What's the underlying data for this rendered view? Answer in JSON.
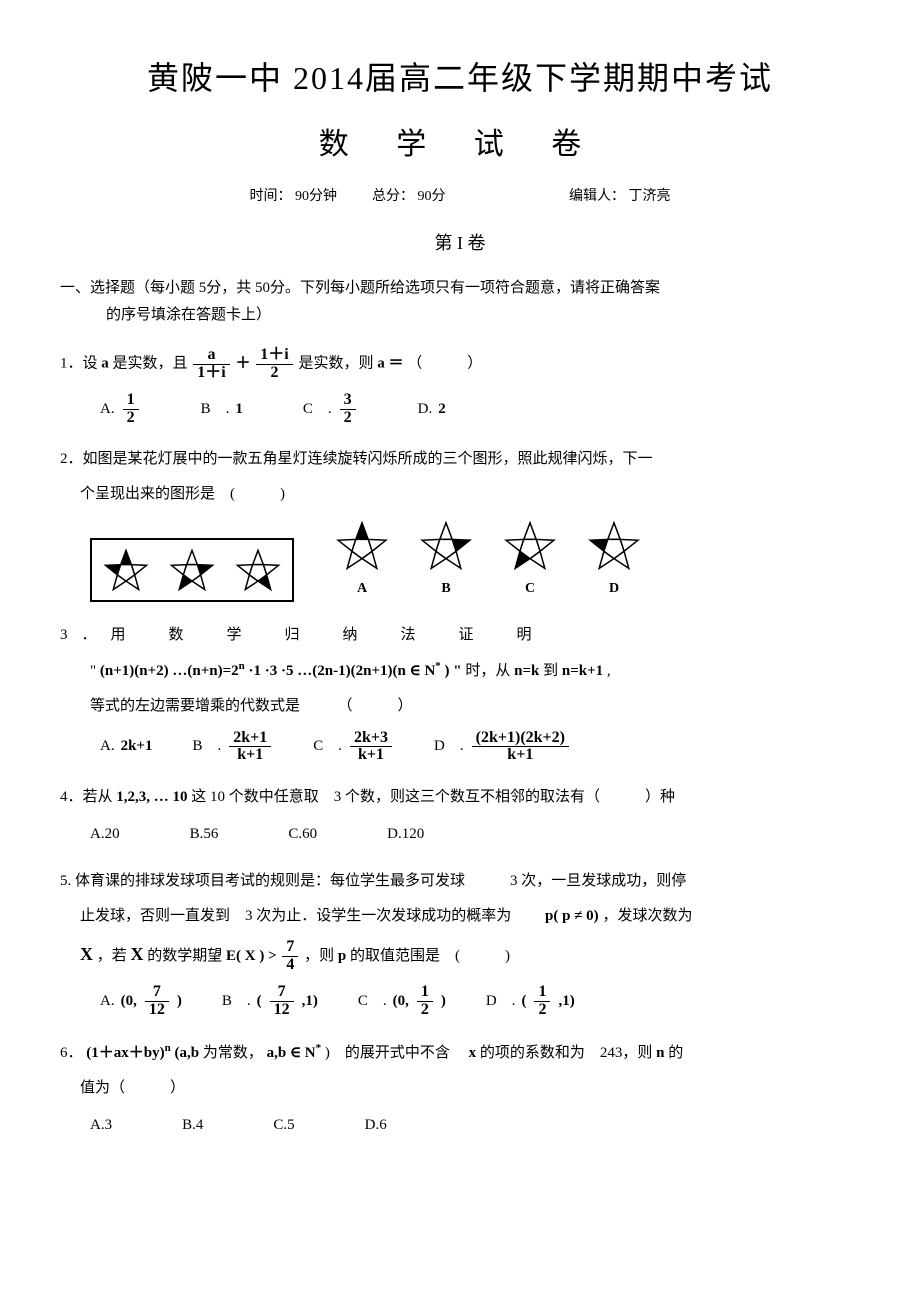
{
  "header": {
    "title_main": "黄陂一中 2014届高二年级下学期期中考试",
    "title_sub": "数 学 试 卷",
    "time_label": "时间：",
    "time_value": "90分钟",
    "total_label": "总分：",
    "total_value": "90分",
    "editor_label": "编辑人：",
    "editor_name": "丁济亮",
    "section": "第 I 卷"
  },
  "instructions": {
    "line1": "一、选择题（每小题  5分，共 50分。下列每小题所给选项只有一项符合题意，请将正确答案",
    "line2": "的序号填涂在答题卡上）"
  },
  "q1": {
    "prefix": "1．设 ",
    "a": "a",
    "t1": " 是实数，且 ",
    "frac1_num": "a",
    "frac1_den": "1＋i",
    "plus": " ＋",
    "frac2_num": "1＋i",
    "frac2_den": "2",
    "t2": " 是实数，则 ",
    "eq": "a ＝",
    "paren": "（　　　）",
    "optA_label": "A.",
    "optA_num": "1",
    "optA_den": "2",
    "optB_label": "B　.",
    "optB_val": "1",
    "optC_label": "C　.",
    "optC_num": "3",
    "optC_den": "2",
    "optD_label": "D.",
    "optD_val": "2"
  },
  "q2": {
    "line1": "2．如图是某花灯展中的一款五角星灯连续旋转闪烁所成的三个图形，照此规律闪烁，下一",
    "line2": "个呈现出来的图形是　(　　　)",
    "labels": {
      "A": "A",
      "B": "B",
      "C": "C",
      "D": "D"
    },
    "star": {
      "size": 56,
      "size_small": 48,
      "stroke": "#000000",
      "stroke_width": 1.5,
      "fill_dark": "#000000",
      "fill_light": "#ffffff"
    },
    "pattern_box": [
      [
        1,
        0,
        0,
        0,
        1
      ],
      [
        0,
        1,
        0,
        1,
        0
      ],
      [
        0,
        0,
        1,
        0,
        0
      ]
    ],
    "options": {
      "A": [
        1,
        0,
        0,
        0,
        0
      ],
      "B": [
        0,
        1,
        0,
        0,
        0
      ],
      "C": [
        0,
        0,
        0,
        1,
        0
      ],
      "D": [
        0,
        0,
        0,
        0,
        1
      ]
    }
  },
  "q3": {
    "line1": "3．用　数　学　归　纳　法　证　明",
    "expr_pre": "\" ",
    "expr": "(n+1)(n+2) …(n+n)=2",
    "expr_sup": "n",
    "expr_mid": " ·1 ·3 ·5 …(2n-1)(2n+1)(n",
    "in": "∈",
    "set": "N",
    "set_sup": "*",
    "expr_post": " ) \"",
    "t_after": " 时，从 ",
    "nk": "n=k",
    "to": " 到 ",
    "nk1": "n=k+1",
    "comma": " ,",
    "line3": "等式的左边需要增乘的代数式是　　　（　　　）",
    "optA_label": "A.",
    "optA_val": "2k+1",
    "optB_label": "B　.",
    "optB_num": "2k+1",
    "optB_den": "k+1",
    "optC_label": "C　.",
    "optC_num": "2k+3",
    "optC_den": "k+1",
    "optD_label": "D　.",
    "optD_num": "(2k+1)(2k+2)",
    "optD_den": "k+1"
  },
  "q4": {
    "line1_a": "4．若从 ",
    "nums": "1,2,3, … 10",
    "line1_b": " 这 10 个数中任意取　3 个数，则这三个数互不相邻的取法有（　　　）种",
    "optA": "A.20",
    "optB": "B.56",
    "optC": "C.60",
    "optD": "D.120"
  },
  "q5": {
    "line1": "5. 体育课的排球发球项目考试的规则是：每位学生最多可发球　　　3 次，一旦发球成功，则停",
    "line2_a": "止发球，否则一直发到　3 次为止．设学生一次发球成功的概率为　　",
    "p": "p( p ≠ 0)",
    "line2_b": " ，发球次数为",
    "line3_a": "X",
    "line3_b": " ，若 ",
    "line3_c": "X",
    "line3_d": " 的数学期望 ",
    "EX": "E( X ) >",
    "frac_num": "7",
    "frac_den": "4",
    "line3_e": "，则 ",
    "line3_p": "p",
    "line3_f": " 的取值范围是　(　　　)",
    "optA_label": "A.",
    "optA_open": "(0, ",
    "optA_num": "7",
    "optA_den": "12",
    "optA_close": ")",
    "optB_label": "B　.",
    "optB_open": "(",
    "optB_num": "7",
    "optB_den": "12",
    "optB_close": ",1)",
    "optC_label": "C　.",
    "optC_open": "(0, ",
    "optC_num": "1",
    "optC_den": "2",
    "optC_close": ")",
    "optD_label": "D　.",
    "optD_open": "(",
    "optD_num": "1",
    "optD_den": "2",
    "optD_close": ",1)"
  },
  "q6": {
    "line1_a": "6．",
    "expr": "(1＋ax＋by)",
    "sup": "n",
    "t1": " (a,b",
    "t1b": " 为常数，",
    "ab": "a,b",
    "in": "∈",
    "set": "N",
    "set_sup": "*",
    "t2": " )　的展开式中不含　",
    "x": "x",
    "t3": " 的项的系数和为　243，则 ",
    "n": "n",
    "t4": " 的",
    "line2": "值为（　　　）",
    "optA": "A.3",
    "optB": "B.4",
    "optC": "C.5",
    "optD": "D.6"
  }
}
